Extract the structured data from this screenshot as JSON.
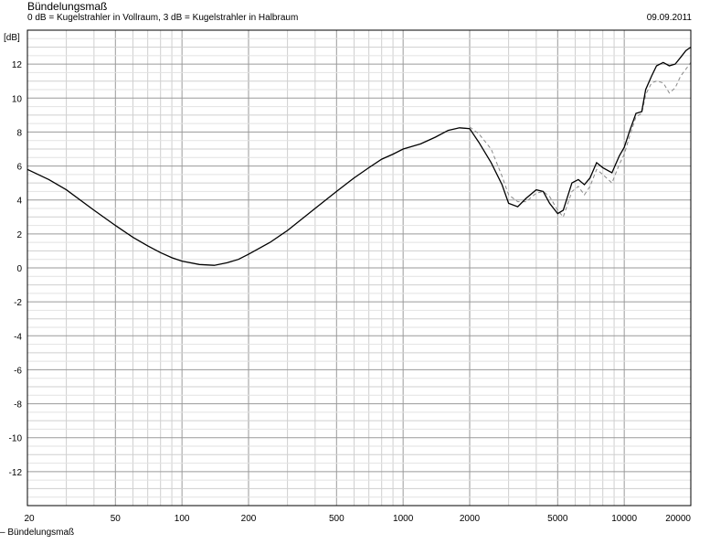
{
  "header": {
    "title": "Bündelungsmaß",
    "subtitle": "0 dB = Kugelstrahler in Vollraum, 3 dB = Kugelstrahler in Halbraum",
    "date": "09.09.2011"
  },
  "legend": {
    "label": "Bündelungsmaß"
  },
  "chart_data": {
    "type": "line",
    "title": "Bündelungsmaß",
    "subtitle": "0 dB = Kugelstrahler in Vollraum, 3 dB = Kugelstrahler in Halbraum",
    "ylabel": "[dB]",
    "xlabel": "",
    "xscale": "log",
    "xlim": [
      20,
      20000
    ],
    "ylim": [
      -14,
      14
    ],
    "grid": true,
    "x_tick_labels": [
      "20",
      "50",
      "100",
      "200",
      "500",
      "1000",
      "2000",
      "5000",
      "10000",
      "20000"
    ],
    "y_tick_labels": [
      "12",
      "10",
      "8",
      "6",
      "4",
      "2",
      "0",
      "-2",
      "-4",
      "-6",
      "-8",
      "-10",
      "-12"
    ],
    "series": [
      {
        "name": "Bündelungsmaß",
        "color": "#000000",
        "style": "solid",
        "x": [
          20,
          25,
          30,
          40,
          50,
          60,
          70,
          80,
          90,
          100,
          120,
          140,
          160,
          180,
          200,
          250,
          300,
          400,
          500,
          600,
          700,
          800,
          900,
          1000,
          1200,
          1400,
          1600,
          1800,
          2000,
          2200,
          2500,
          2800,
          3000,
          3300,
          3600,
          4000,
          4300,
          4600,
          5000,
          5300,
          5800,
          6200,
          6600,
          7000,
          7500,
          8000,
          8800,
          9500,
          10000,
          10600,
          11300,
          12000,
          12500,
          13300,
          14000,
          15000,
          16000,
          17000,
          18000,
          19000,
          20000
        ],
        "y": [
          5.8,
          5.2,
          4.6,
          3.4,
          2.5,
          1.8,
          1.3,
          0.9,
          0.6,
          0.4,
          0.2,
          0.15,
          0.3,
          0.5,
          0.8,
          1.5,
          2.2,
          3.5,
          4.5,
          5.3,
          5.9,
          6.4,
          6.7,
          7.0,
          7.3,
          7.7,
          8.1,
          8.25,
          8.2,
          7.4,
          6.2,
          4.9,
          3.8,
          3.6,
          4.1,
          4.6,
          4.5,
          3.8,
          3.2,
          3.4,
          5.0,
          5.2,
          4.9,
          5.3,
          6.2,
          5.9,
          5.6,
          6.6,
          7.1,
          8.1,
          9.1,
          9.2,
          10.5,
          11.3,
          11.9,
          12.1,
          11.9,
          12.0,
          12.4,
          12.8,
          13.0
        ]
      },
      {
        "name": "",
        "color": "#888888",
        "style": "dashed",
        "x": [
          2000,
          2200,
          2500,
          2800,
          3000,
          3300,
          3600,
          4000,
          4300,
          4600,
          5000,
          5300,
          5800,
          6200,
          6600,
          7000,
          7500,
          8000,
          8800,
          9500,
          10000,
          10600,
          11300,
          12000,
          12500,
          13300,
          14000,
          15000,
          16000,
          17000,
          18000,
          19000,
          20000
        ],
        "y": [
          8.3,
          7.9,
          7.0,
          5.4,
          4.3,
          3.9,
          3.9,
          4.4,
          4.5,
          4.2,
          3.4,
          3.0,
          4.5,
          4.8,
          4.3,
          4.8,
          5.8,
          5.5,
          5.0,
          6.1,
          6.7,
          7.8,
          8.9,
          9.1,
          10.2,
          10.9,
          11.0,
          10.9,
          10.3,
          10.6,
          11.3,
          11.7,
          12.1
        ]
      }
    ]
  }
}
